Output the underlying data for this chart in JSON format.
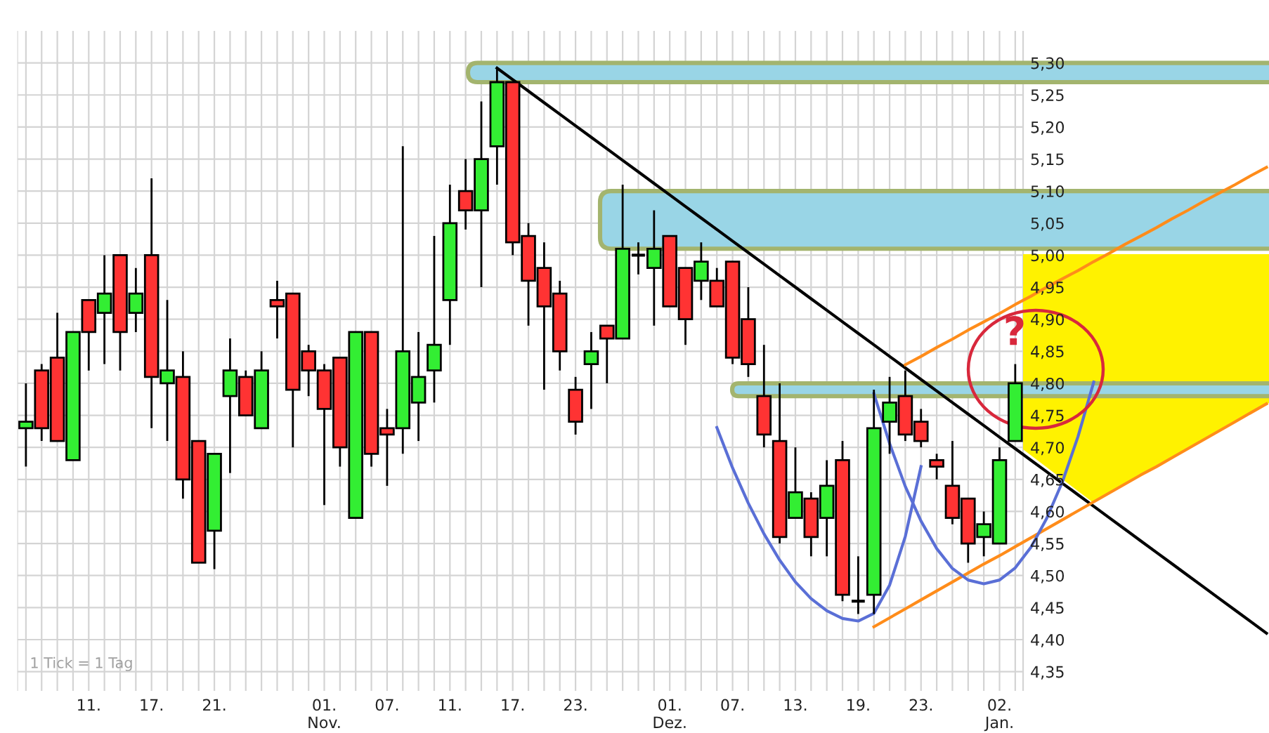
{
  "chart_data": {
    "type": "candlestick",
    "categories": [
      null,
      null,
      null,
      null,
      "11.",
      null,
      null,
      null,
      "17.",
      null,
      null,
      null,
      "21.",
      null,
      null,
      null,
      null,
      null,
      null,
      "01.\nNov.",
      null,
      null,
      null,
      "07.",
      null,
      null,
      null,
      "11.",
      null,
      null,
      null,
      "17.",
      null,
      null,
      null,
      "23.",
      null,
      null,
      null,
      null,
      null,
      "01.\nDez.",
      null,
      null,
      null,
      "07.",
      null,
      null,
      null,
      "13.",
      null,
      null,
      null,
      "19.",
      null,
      null,
      null,
      "23.",
      null,
      null,
      null,
      null,
      "02.\nJan.",
      null,
      null,
      null,
      null,
      null,
      null,
      null,
      null,
      null,
      null,
      null,
      null,
      null,
      null,
      null,
      null,
      null
    ],
    "ohlc": [
      [
        4.73,
        4.8,
        4.67,
        4.74
      ],
      [
        4.82,
        4.83,
        4.71,
        4.73
      ],
      [
        4.84,
        4.91,
        4.71,
        4.71
      ],
      [
        4.68,
        4.88,
        4.68,
        4.88
      ],
      [
        4.93,
        4.93,
        4.82,
        4.88
      ],
      [
        4.91,
        5.0,
        4.83,
        4.94
      ],
      [
        5.0,
        5.0,
        4.82,
        4.88
      ],
      [
        4.91,
        4.98,
        4.88,
        4.94
      ],
      [
        5.0,
        5.12,
        4.73,
        4.81
      ],
      [
        4.8,
        4.93,
        4.71,
        4.82
      ],
      [
        4.81,
        4.85,
        4.62,
        4.65
      ],
      [
        4.71,
        4.71,
        4.52,
        4.52
      ],
      [
        4.57,
        4.69,
        4.51,
        4.69
      ],
      [
        4.78,
        4.87,
        4.66,
        4.82
      ],
      [
        4.81,
        4.82,
        4.75,
        4.75
      ],
      [
        4.73,
        4.85,
        4.73,
        4.82
      ],
      [
        4.93,
        4.96,
        4.87,
        4.92
      ],
      [
        4.94,
        4.94,
        4.7,
        4.79
      ],
      [
        4.85,
        4.86,
        4.78,
        4.82
      ],
      [
        4.82,
        4.83,
        4.61,
        4.76
      ],
      [
        4.84,
        4.84,
        4.67,
        4.7
      ],
      [
        4.59,
        4.88,
        4.59,
        4.88
      ],
      [
        4.88,
        4.88,
        4.67,
        4.69
      ],
      [
        4.73,
        4.76,
        4.64,
        4.72
      ],
      [
        4.73,
        5.17,
        4.69,
        4.85
      ],
      [
        4.77,
        4.88,
        4.71,
        4.81
      ],
      [
        4.82,
        5.03,
        4.77,
        4.86
      ],
      [
        4.93,
        5.11,
        4.86,
        5.05
      ],
      [
        5.1,
        5.15,
        5.04,
        5.07
      ],
      [
        5.07,
        5.24,
        4.95,
        5.15
      ],
      [
        5.17,
        5.29,
        5.11,
        5.27
      ],
      [
        5.27,
        5.27,
        5.0,
        5.02
      ],
      [
        5.03,
        5.05,
        4.89,
        4.96
      ],
      [
        4.98,
        5.02,
        4.79,
        4.92
      ],
      [
        4.94,
        4.96,
        4.82,
        4.85
      ],
      [
        4.79,
        4.81,
        4.72,
        4.74
      ],
      [
        4.83,
        4.88,
        4.76,
        4.85
      ],
      [
        4.89,
        4.89,
        4.8,
        4.87
      ],
      [
        4.87,
        5.11,
        4.87,
        5.01
      ],
      [
        5.0,
        5.02,
        4.97,
        5.0
      ],
      [
        4.98,
        5.07,
        4.89,
        5.01
      ],
      [
        5.03,
        5.03,
        4.92,
        4.92
      ],
      [
        4.98,
        4.98,
        4.86,
        4.9
      ],
      [
        4.96,
        5.02,
        4.93,
        4.99
      ],
      [
        4.96,
        4.98,
        4.92,
        4.92
      ],
      [
        4.99,
        4.99,
        4.83,
        4.84
      ],
      [
        4.9,
        4.95,
        4.81,
        4.83
      ],
      [
        4.78,
        4.86,
        4.7,
        4.72
      ],
      [
        4.71,
        4.8,
        4.55,
        4.56
      ],
      [
        4.59,
        4.7,
        4.59,
        4.63
      ],
      [
        4.62,
        4.63,
        4.53,
        4.56
      ],
      [
        4.59,
        4.68,
        4.53,
        4.64
      ],
      [
        4.68,
        4.71,
        4.46,
        4.47
      ],
      [
        4.46,
        4.53,
        4.44,
        4.46
      ],
      [
        4.47,
        4.79,
        4.44,
        4.73
      ],
      [
        4.74,
        4.81,
        4.69,
        4.77
      ],
      [
        4.78,
        4.82,
        4.71,
        4.72
      ],
      [
        4.74,
        4.76,
        4.7,
        4.71
      ],
      [
        4.68,
        4.69,
        4.65,
        4.67
      ],
      [
        4.64,
        4.71,
        4.58,
        4.59
      ],
      [
        4.62,
        4.62,
        4.52,
        4.55
      ],
      [
        4.56,
        4.6,
        4.53,
        4.58
      ],
      [
        4.55,
        4.7,
        4.55,
        4.68
      ],
      [
        4.71,
        4.83,
        4.71,
        4.8
      ],
      null,
      null,
      null,
      null,
      null,
      null,
      null,
      null,
      null,
      null,
      null,
      null,
      null,
      null,
      null,
      null
    ],
    "colors": [
      "#33ee33",
      "#ff3333",
      "#ff3333",
      "#33ee33",
      "#ff3333",
      "#33ee33",
      "#ff3333",
      "#33ee33",
      "#ff3333",
      "#33ee33",
      "#ff3333",
      "#ff3333",
      "#33ee33",
      "#33ee33",
      "#ff3333",
      "#33ee33",
      "#ff3333",
      "#ff3333",
      "#ff3333",
      "#ff3333",
      "#ff3333",
      "#33ee33",
      "#ff3333",
      "#ff3333",
      "#33ee33",
      "#33ee33",
      "#33ee33",
      "#33ee33",
      "#ff3333",
      "#33ee33",
      "#33ee33",
      "#ff3333",
      "#ff3333",
      "#ff3333",
      "#ff3333",
      "#ff3333",
      "#33ee33",
      "#ff3333",
      "#33ee33",
      "#000000",
      "#33ee33",
      "#ff3333",
      "#ff3333",
      "#33ee33",
      "#ff3333",
      "#ff3333",
      "#ff3333",
      "#ff3333",
      "#ff3333",
      "#33ee33",
      "#ff3333",
      "#33ee33",
      "#ff3333",
      "#000000",
      "#33ee33",
      "#33ee33",
      "#ff3333",
      "#ff3333",
      "#ff3333",
      "#ff3333",
      "#ff3333",
      "#33ee33",
      "#33ee33",
      "#33ee33",
      null,
      null,
      null,
      null,
      null,
      null,
      null,
      null,
      null,
      null,
      null,
      null,
      null,
      null,
      null,
      null
    ],
    "series": [
      {
        "type": "line",
        "color": "#000000",
        "values": [
          null,
          null,
          null,
          null,
          null,
          null,
          null,
          null,
          null,
          null,
          null,
          null,
          null,
          null,
          null,
          null,
          null,
          null,
          null,
          null,
          null,
          null,
          null,
          null,
          null,
          null,
          null,
          null,
          null,
          null,
          5.292,
          5.274,
          5.256,
          5.238,
          5.22,
          5.202,
          5.184,
          5.166,
          5.148,
          5.13,
          5.112,
          5.094,
          5.076,
          5.058,
          5.04,
          5.022,
          5.004,
          4.986,
          4.968,
          4.95,
          4.932,
          4.914,
          4.896,
          4.878,
          4.86,
          4.842,
          4.824,
          4.806,
          4.788,
          4.77,
          4.752,
          4.734,
          4.716,
          4.698,
          4.68,
          4.662,
          4.644,
          4.626,
          4.608,
          4.59,
          4.572,
          4.554,
          4.536,
          4.518,
          4.5,
          4.482,
          4.464,
          4.446,
          4.428,
          4.41
        ]
      },
      {
        "type": "line",
        "color": "#ff8c1a",
        "values": [
          null,
          null,
          null,
          null,
          null,
          null,
          null,
          null,
          null,
          null,
          null,
          null,
          null,
          null,
          null,
          null,
          null,
          null,
          null,
          null,
          null,
          null,
          null,
          null,
          null,
          null,
          null,
          null,
          null,
          null,
          null,
          null,
          null,
          null,
          null,
          null,
          null,
          null,
          null,
          null,
          null,
          null,
          null,
          null,
          null,
          null,
          null,
          null,
          null,
          null,
          null,
          null,
          null,
          null,
          null,
          null,
          4.829,
          4.842,
          4.856,
          4.869,
          4.883,
          4.896,
          4.909,
          4.923,
          4.936,
          4.95,
          4.963,
          4.976,
          4.99,
          5.003,
          5.017,
          5.03,
          5.043,
          5.057,
          5.07,
          5.084,
          5.097,
          5.11,
          5.124,
          5.137
        ]
      },
      {
        "type": "line",
        "color": "#ff8c1a",
        "values": [
          null,
          null,
          null,
          null,
          null,
          null,
          null,
          null,
          null,
          null,
          null,
          null,
          null,
          null,
          null,
          null,
          null,
          null,
          null,
          null,
          null,
          null,
          null,
          null,
          null,
          null,
          null,
          null,
          null,
          null,
          null,
          null,
          null,
          null,
          null,
          null,
          null,
          null,
          null,
          null,
          null,
          null,
          null,
          null,
          null,
          null,
          null,
          null,
          null,
          null,
          null,
          null,
          null,
          null,
          4.42,
          4.434,
          4.448,
          4.462,
          4.476,
          4.49,
          4.504,
          4.518,
          4.531,
          4.545,
          4.559,
          4.573,
          4.587,
          4.601,
          4.615,
          4.629,
          4.643,
          4.657,
          4.67,
          4.684,
          4.698,
          4.712,
          4.726,
          4.74,
          4.754,
          4.768
        ]
      },
      {
        "type": "line",
        "color": "#5a6fd6",
        "values": [
          null,
          null,
          null,
          null,
          null,
          null,
          null,
          null,
          null,
          null,
          null,
          null,
          null,
          null,
          null,
          null,
          null,
          null,
          null,
          null,
          null,
          null,
          null,
          null,
          null,
          null,
          null,
          null,
          null,
          null,
          null,
          null,
          null,
          null,
          null,
          null,
          null,
          null,
          null,
          null,
          null,
          null,
          null,
          null,
          4.731,
          4.668,
          4.613,
          4.565,
          4.524,
          4.49,
          4.464,
          4.445,
          4.433,
          4.429,
          4.441,
          4.485,
          4.561,
          4.67,
          null,
          null,
          null,
          null,
          null,
          null,
          null,
          null,
          null,
          null,
          null,
          null,
          null,
          null,
          null,
          null,
          null,
          null,
          null,
          null,
          null,
          null
        ]
      },
      {
        "type": "line",
        "color": "#5a6fd6",
        "values": [
          null,
          null,
          null,
          null,
          null,
          null,
          null,
          null,
          null,
          null,
          null,
          null,
          null,
          null,
          null,
          null,
          null,
          null,
          null,
          null,
          null,
          null,
          null,
          null,
          null,
          null,
          null,
          null,
          null,
          null,
          null,
          null,
          null,
          null,
          null,
          null,
          null,
          null,
          null,
          null,
          null,
          null,
          null,
          null,
          null,
          null,
          null,
          null,
          null,
          null,
          null,
          null,
          null,
          null,
          4.784,
          4.706,
          4.639,
          4.585,
          4.542,
          4.511,
          4.493,
          4.487,
          4.493,
          4.512,
          4.544,
          4.589,
          4.646,
          4.717,
          4.802,
          null,
          null,
          null,
          null,
          null,
          null,
          null,
          null,
          null,
          null,
          null
        ]
      }
    ],
    "ylim": [
      4.32,
      5.35
    ],
    "yticks": [
      {
        "value": 4.35,
        "label": "4,35"
      },
      {
        "value": 4.4,
        "label": "4,40"
      },
      {
        "value": 4.45,
        "label": "4,45"
      },
      {
        "value": 4.5,
        "label": "4,50"
      },
      {
        "value": 4.55,
        "label": "4,55"
      },
      {
        "value": 4.6,
        "label": "4,60"
      },
      {
        "value": 4.65,
        "label": "4,65"
      },
      {
        "value": 4.7,
        "label": "4,70"
      },
      {
        "value": 4.75,
        "label": "4,75"
      },
      {
        "value": 4.8,
        "label": "4,80"
      },
      {
        "value": 4.85,
        "label": "4,85"
      },
      {
        "value": 4.9,
        "label": "4,90"
      },
      {
        "value": 4.95,
        "label": "4,95"
      },
      {
        "value": 5.0,
        "label": "5,00"
      },
      {
        "value": 5.05,
        "label": "5,05"
      },
      {
        "value": 5.1,
        "label": "5,10"
      },
      {
        "value": 5.15,
        "label": "5,15"
      },
      {
        "value": 5.2,
        "label": "5,20"
      },
      {
        "value": 5.25,
        "label": "5,25"
      },
      {
        "value": 5.3,
        "label": "5,30"
      }
    ],
    "bands": [
      {
        "axis": "y",
        "from": 5.27,
        "to": 5.3,
        "color": "#99d5e6"
      },
      {
        "axis": "y",
        "from": 5.01,
        "to": 5.1,
        "color": "#99d5e6"
      },
      {
        "axis": "y",
        "from": 4.78,
        "to": 4.8,
        "color": "#99d5e6"
      }
    ],
    "annotations": [
      "1 Tick = 1 Tag",
      "?"
    ],
    "grid": true
  }
}
